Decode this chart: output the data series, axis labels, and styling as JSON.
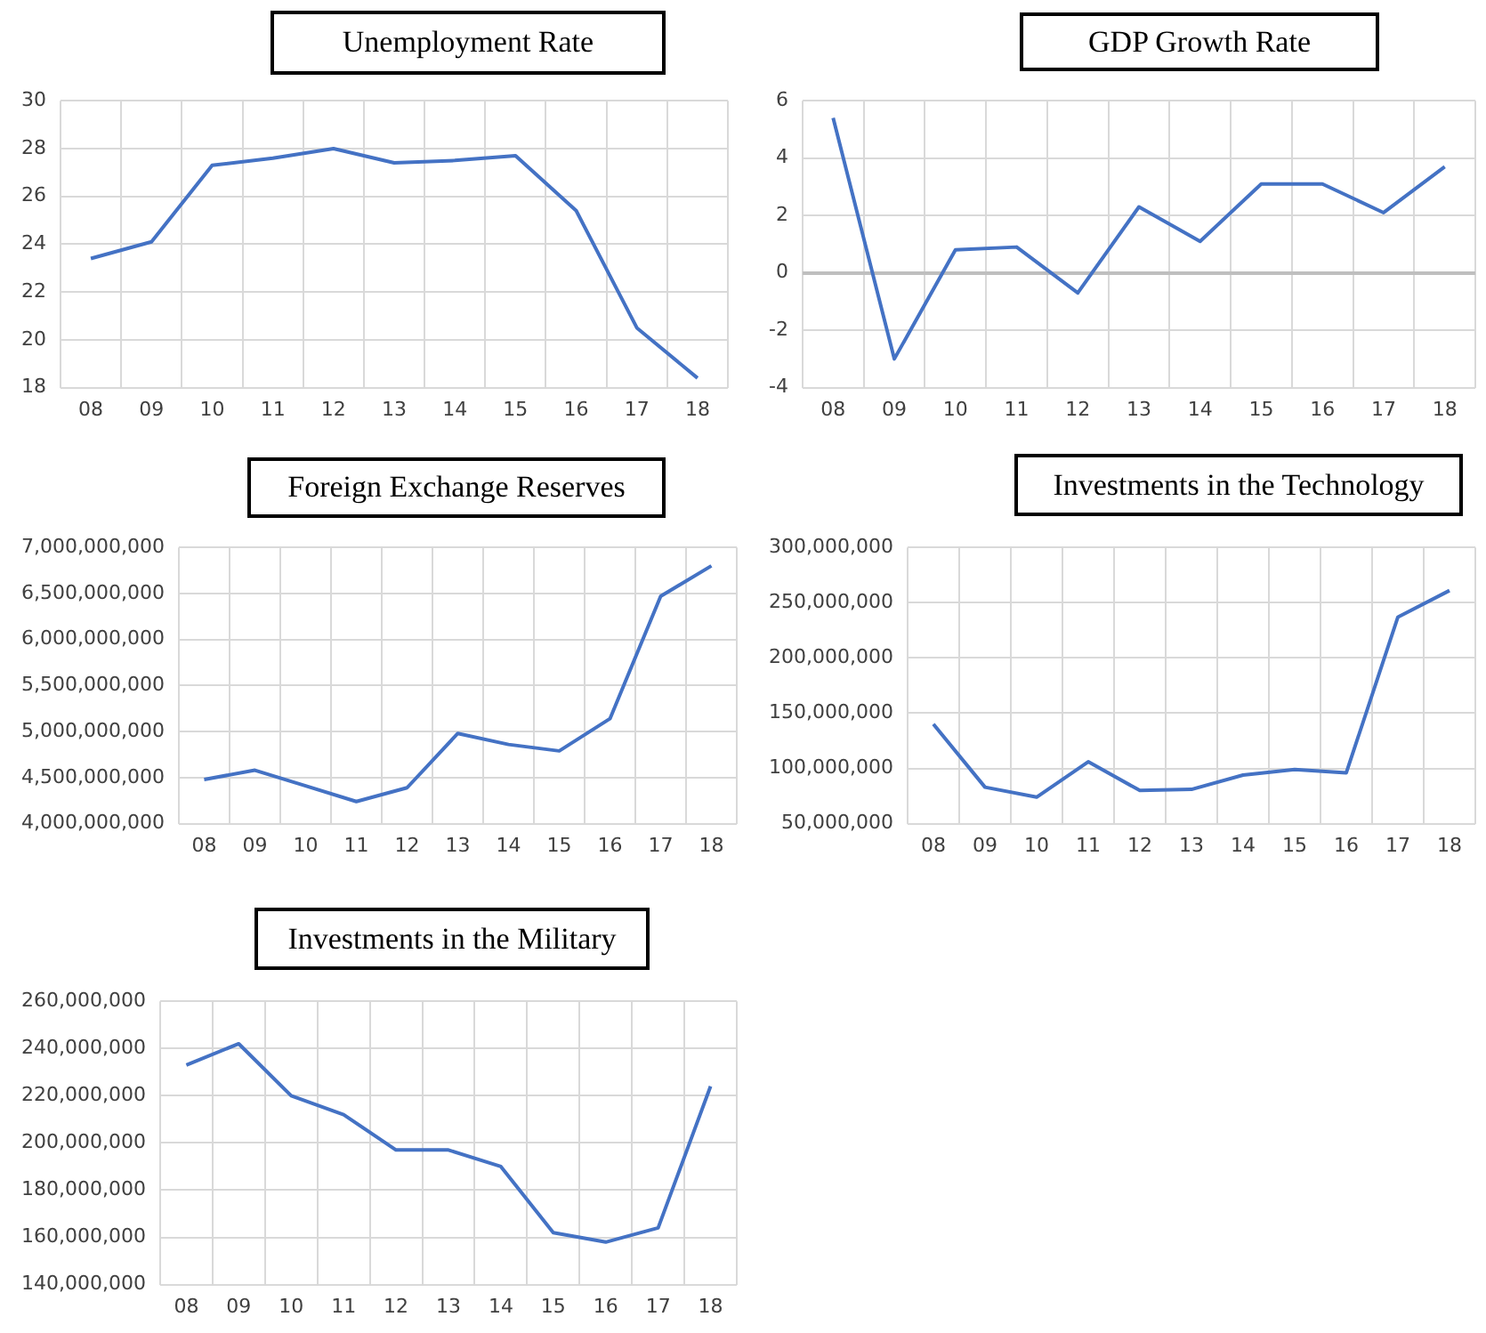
{
  "chart_data": [
    {
      "type": "line",
      "title": "Unemployment Rate",
      "categories": [
        "08",
        "09",
        "10",
        "11",
        "12",
        "13",
        "14",
        "15",
        "16",
        "17",
        "18"
      ],
      "color": "#4472c4",
      "grid": true,
      "values": [
        23.4,
        24.1,
        27.3,
        27.6,
        28.0,
        27.4,
        27.5,
        27.7,
        25.4,
        20.5,
        18.4
      ],
      "ylim": [
        18,
        30
      ],
      "yticks": [
        18,
        20,
        22,
        24,
        26,
        28,
        30
      ]
    },
    {
      "type": "line",
      "title": "GDP Growth Rate",
      "categories": [
        "08",
        "09",
        "10",
        "11",
        "12",
        "13",
        "14",
        "15",
        "16",
        "17",
        "18"
      ],
      "color": "#4472c4",
      "grid": true,
      "values": [
        5.4,
        -3.0,
        0.8,
        0.9,
        -0.7,
        2.3,
        1.1,
        3.1,
        3.1,
        2.1,
        3.7
      ],
      "ylim": [
        -4,
        6
      ],
      "yticks": [
        -4,
        -2,
        0,
        2,
        4,
        6
      ]
    },
    {
      "type": "line",
      "title": "Foreign Exchange Reserves",
      "categories": [
        "08",
        "09",
        "10",
        "11",
        "12",
        "13",
        "14",
        "15",
        "16",
        "17",
        "18"
      ],
      "color": "#4472c4",
      "grid": true,
      "values": [
        4480000000,
        4580000000,
        4410000000,
        4240000000,
        4390000000,
        4980000000,
        4860000000,
        4790000000,
        5140000000,
        6470000000,
        6800000000
      ],
      "ylim": [
        4000000000,
        7000000000
      ],
      "yticks": [
        {
          "value": 4000000000,
          "label": "4,000,000,000"
        },
        {
          "value": 4500000000,
          "label": "4,500,000,000"
        },
        {
          "value": 5000000000,
          "label": "5,000,000,000"
        },
        {
          "value": 5500000000,
          "label": "5,500,000,000"
        },
        {
          "value": 6000000000,
          "label": "6,000,000,000"
        },
        {
          "value": 6500000000,
          "label": "6,500,000,000"
        },
        {
          "value": 7000000000,
          "label": "7,000,000,000"
        }
      ]
    },
    {
      "type": "line",
      "title": "Investments in the Technology",
      "categories": [
        "08",
        "09",
        "10",
        "11",
        "12",
        "13",
        "14",
        "15",
        "16",
        "17",
        "18"
      ],
      "color": "#4472c4",
      "grid": true,
      "values": [
        140000000,
        83000000,
        74000000,
        106000000,
        80000000,
        81000000,
        94000000,
        99000000,
        96000000,
        237000000,
        261000000
      ],
      "ylim": [
        50000000,
        300000000
      ],
      "yticks": [
        {
          "value": 50000000,
          "label": "50,000,000"
        },
        {
          "value": 100000000,
          "label": "100,000,000"
        },
        {
          "value": 150000000,
          "label": "150,000,000"
        },
        {
          "value": 200000000,
          "label": "200,000,000"
        },
        {
          "value": 250000000,
          "label": "250,000,000"
        },
        {
          "value": 300000000,
          "label": "300,000,000"
        }
      ]
    },
    {
      "type": "line",
      "title": "Investments in the Military",
      "categories": [
        "08",
        "09",
        "10",
        "11",
        "12",
        "13",
        "14",
        "15",
        "16",
        "17",
        "18"
      ],
      "color": "#4472c4",
      "grid": true,
      "values": [
        233000000,
        242000000,
        220000000,
        212000000,
        197000000,
        197000000,
        190000000,
        162000000,
        158000000,
        164000000,
        224000000
      ],
      "ylim": [
        140000000,
        260000000
      ],
      "yticks": [
        {
          "value": 140000000,
          "label": "140,000,000"
        },
        {
          "value": 160000000,
          "label": "160,000,000"
        },
        {
          "value": 180000000,
          "label": "180,000,000"
        },
        {
          "value": 200000000,
          "label": "200,000,000"
        },
        {
          "value": 220000000,
          "label": "220,000,000"
        },
        {
          "value": 240000000,
          "label": "240,000,000"
        },
        {
          "value": 260000000,
          "label": "260,000,000"
        }
      ]
    }
  ]
}
